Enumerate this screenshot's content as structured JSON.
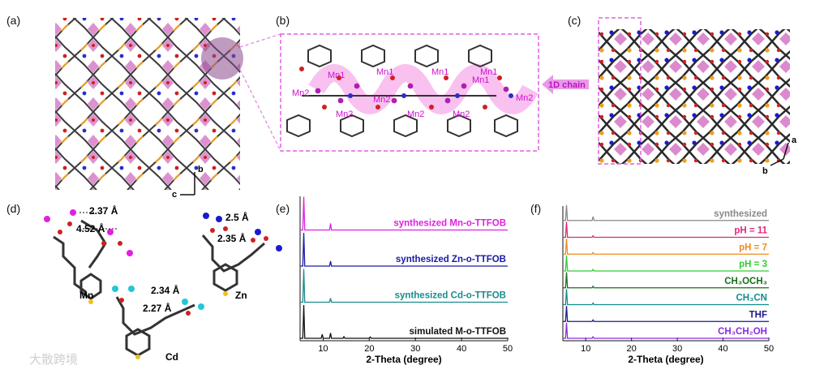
{
  "panels": {
    "a": "(a)",
    "b": "(b)",
    "c": "(c)",
    "d": "(d)",
    "e": "(e)",
    "f": "(f)"
  },
  "panel_a": {
    "axis_b": "b",
    "axis_c": "c"
  },
  "panel_b": {
    "labels": [
      "Mn1",
      "Mn1",
      "Mn1",
      "Mn1",
      "Mn1",
      "Mn2",
      "Mn2",
      "Mn2",
      "Mn2",
      "Mn2",
      "Mn2"
    ]
  },
  "panel_c": {
    "chain_label": "1D chain",
    "axis_a": "a",
    "axis_b": "b"
  },
  "panel_d": {
    "mn": {
      "name": "Mn",
      "d1": "2.37 Å",
      "d2": "4.52 Å"
    },
    "zn": {
      "name": "Zn",
      "d1": "2.5 Å",
      "d2": "2.35 Å"
    },
    "cd": {
      "name": "Cd",
      "d1": "2.34 Å",
      "d2": "2.27 Å"
    }
  },
  "colors": {
    "magenta": "#e020e0",
    "blue": "#1a1aa8",
    "teal": "#1a8c8c",
    "black": "#111111",
    "gray": "#888888",
    "pink": "#e0287a",
    "orange": "#f08a1c",
    "green": "#33cc33",
    "darkgreen": "#1a6e1a",
    "teal2": "#128c8c",
    "navy": "#1a1a8a",
    "purple": "#8a2be2",
    "polyhedron": "#d77fc8"
  },
  "chart_data": [
    {
      "type": "line",
      "panel": "e",
      "xlabel": "2-Theta (degree)",
      "xlim": [
        5,
        50
      ],
      "xticks": [
        10,
        20,
        30,
        40,
        50
      ],
      "series": [
        {
          "name": "synthesized Mn-o-TTFOB",
          "color": "#e020e0",
          "peaks": [
            [
              5.8,
              1.0
            ],
            [
              11.6,
              0.2
            ]
          ]
        },
        {
          "name": "synthesized Zn-o-TTFOB",
          "color": "#1a1aa8",
          "peaks": [
            [
              5.8,
              1.0
            ],
            [
              11.6,
              0.15
            ]
          ]
        },
        {
          "name": "synthesized Cd-o-TTFOB",
          "color": "#1a8c8c",
          "peaks": [
            [
              5.8,
              1.0
            ],
            [
              11.6,
              0.12
            ]
          ]
        },
        {
          "name": "simulated M-o-TTFOB",
          "color": "#111111",
          "peaks": [
            [
              5.8,
              1.0
            ],
            [
              9.8,
              0.12
            ],
            [
              11.6,
              0.16
            ],
            [
              14.5,
              0.05
            ],
            [
              20.2,
              0.04
            ]
          ]
        }
      ]
    },
    {
      "type": "line",
      "panel": "f",
      "xlabel": "2-Theta (degree)",
      "xlim": [
        5,
        50
      ],
      "xticks": [
        10,
        20,
        30,
        40,
        50
      ],
      "series": [
        {
          "name": "synthesized",
          "color": "#888888",
          "peaks": [
            [
              5.8,
              1.0
            ],
            [
              11.6,
              0.25
            ]
          ]
        },
        {
          "name": "pH = 11",
          "color": "#e0287a",
          "peaks": [
            [
              5.8,
              1.0
            ],
            [
              11.6,
              0.1
            ]
          ]
        },
        {
          "name": "pH = 7",
          "color": "#f08a1c",
          "peaks": [
            [
              5.8,
              1.0
            ],
            [
              11.6,
              0.1
            ]
          ]
        },
        {
          "name": "pH = 3",
          "color": "#33cc33",
          "peaks": [
            [
              5.8,
              1.0
            ],
            [
              11.6,
              0.1
            ]
          ]
        },
        {
          "name": "CH₃OCH₃",
          "color": "#1a6e1a",
          "peaks": [
            [
              5.8,
              1.0
            ],
            [
              11.6,
              0.1
            ]
          ]
        },
        {
          "name": "CH₃CN",
          "color": "#128c8c",
          "peaks": [
            [
              5.8,
              1.0
            ],
            [
              11.6,
              0.1
            ]
          ]
        },
        {
          "name": "THF",
          "color": "#1a1a8a",
          "peaks": [
            [
              5.8,
              1.0
            ],
            [
              11.6,
              0.1
            ]
          ]
        },
        {
          "name": "CH₃CH₂OH",
          "color": "#8a2be2",
          "peaks": [
            [
              5.8,
              1.0
            ],
            [
              11.6,
              0.1
            ]
          ]
        }
      ]
    }
  ],
  "watermark": "大散跨境"
}
